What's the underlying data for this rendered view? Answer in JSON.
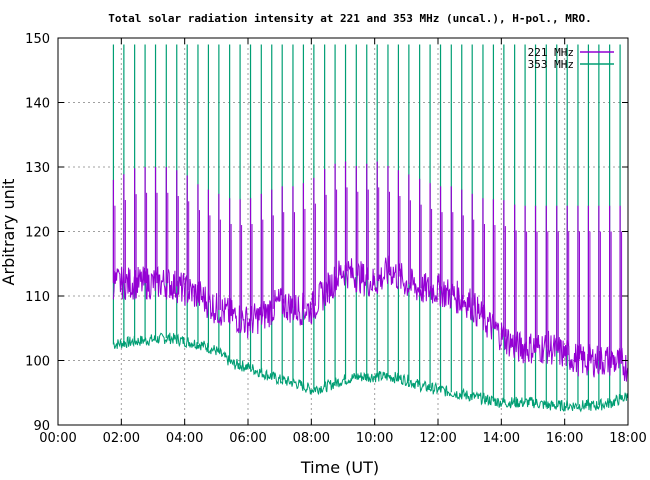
{
  "chart_data": {
    "type": "line",
    "title": "Total solar radiation intensity at 221 and 353 MHz (uncal.), H-pol., MRO.",
    "xlabel": "Time (UT)",
    "ylabel": "Arbitrary unit",
    "xlim": [
      0,
      18
    ],
    "ylim": [
      90,
      150
    ],
    "xticks": [
      "00:00",
      "02:00",
      "04:00",
      "06:00",
      "08:00",
      "10:00",
      "12:00",
      "14:00",
      "16:00",
      "18:00"
    ],
    "yticks": [
      "90",
      "100",
      "110",
      "120",
      "130",
      "140",
      "150"
    ],
    "grid": true,
    "legend_position": "top-right",
    "x_unit": "hours UT",
    "series": [
      {
        "name": "221 MHz",
        "color": "#9400d3",
        "x": [
          1.75,
          2.5,
          3.5,
          4.0,
          4.5,
          5.0,
          5.5,
          6.0,
          6.5,
          7.0,
          7.5,
          8.0,
          8.5,
          9.0,
          9.5,
          10.0,
          10.5,
          11.0,
          11.5,
          12.0,
          12.5,
          13.0,
          13.5,
          14.0,
          14.5,
          15.0,
          15.5,
          16.0,
          16.5,
          17.0,
          17.5,
          18.0
        ],
        "values": [
          112,
          112,
          112,
          111,
          110,
          108,
          107,
          106,
          107,
          109,
          108,
          108,
          111,
          114,
          113,
          112,
          114,
          112,
          111,
          111,
          110,
          109,
          106,
          104,
          102,
          102,
          102,
          101,
          100,
          100,
          100,
          99
        ],
        "spike_peaks": [
          128,
          130,
          130,
          129,
          127,
          126,
          125,
          125,
          126,
          127,
          127,
          128,
          130,
          131,
          130,
          131,
          130,
          129,
          128,
          127,
          127,
          126,
          125,
          125,
          124,
          124,
          124,
          124,
          124,
          124,
          124,
          124
        ]
      },
      {
        "name": "353 MHz",
        "color": "#009e73",
        "x": [
          1.75,
          2.5,
          3.5,
          4.0,
          4.5,
          5.0,
          5.5,
          6.0,
          6.5,
          7.0,
          7.5,
          8.0,
          8.5,
          9.0,
          9.5,
          10.0,
          10.5,
          11.0,
          11.5,
          12.0,
          12.5,
          13.0,
          13.5,
          14.0,
          14.5,
          15.0,
          15.5,
          16.0,
          16.5,
          17.0,
          17.5,
          18.0
        ],
        "values": [
          102.5,
          103,
          103.5,
          103,
          102.5,
          101.5,
          99.5,
          99,
          98,
          97,
          96.5,
          95.5,
          96,
          97,
          97.5,
          97.5,
          97.5,
          97,
          96,
          95.5,
          95,
          94.5,
          94,
          93.5,
          93.5,
          93.5,
          93,
          93,
          93,
          93,
          93.5,
          94.5
        ],
        "spike_peaks": [
          149,
          149,
          149,
          149,
          149,
          149,
          149,
          149,
          149,
          149,
          149,
          149,
          149,
          149,
          149,
          149,
          149,
          149,
          149,
          149,
          149,
          149,
          149,
          149,
          149,
          149,
          149,
          149,
          149,
          149,
          149,
          149
        ]
      }
    ],
    "spike_times": [
      1.75,
      2.08,
      2.42,
      2.75,
      3.08,
      3.42,
      3.75,
      4.08,
      4.42,
      4.75,
      5.08,
      5.42,
      5.75,
      6.08,
      6.42,
      6.75,
      7.08,
      7.42,
      7.75,
      8.08,
      8.42,
      8.75,
      9.08,
      9.42,
      9.75,
      10.08,
      10.42,
      10.75,
      11.08,
      11.42,
      11.75,
      12.08,
      12.42,
      12.75,
      13.08,
      13.42,
      13.75,
      14.08,
      14.42,
      14.75,
      15.08,
      15.42,
      15.75,
      16.08,
      16.42,
      16.75,
      17.08,
      17.42,
      17.75
    ]
  }
}
